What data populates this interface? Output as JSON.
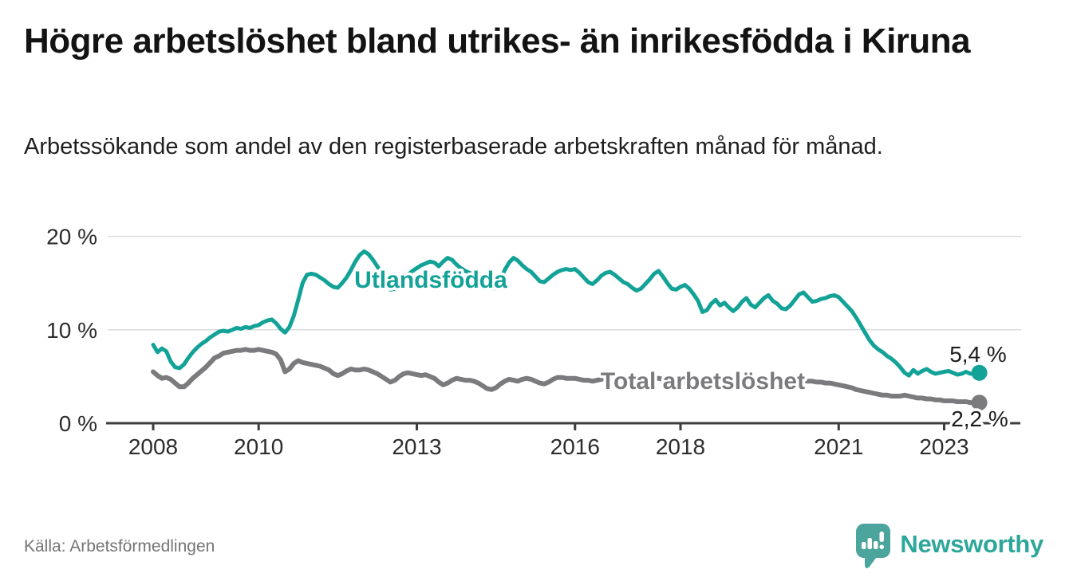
{
  "header": {
    "title": "Högre arbetslöshet bland utrikes- än inrikesfödda i Kiruna",
    "subtitle": "Arbetssökande som andel av den registerbaserade arbetskraften månad för månad."
  },
  "chart_data": {
    "type": "line",
    "unit": "%",
    "frequency": "monthly",
    "start": "2008-01",
    "end": "2023-09",
    "grid": "horizontal",
    "ylim": [
      0,
      21.5
    ],
    "x_ticks": [
      "2008",
      "2010",
      "2013",
      "2016",
      "2018",
      "2021",
      "2023"
    ],
    "y_ticks": [
      "0 %",
      "10 %",
      "20 %"
    ],
    "series": [
      {
        "name": "Utlandsfödda",
        "color": "#13a297",
        "end_label": "5,4 %",
        "values": [
          8.4,
          7.6,
          8.0,
          7.7,
          6.6,
          6.0,
          5.9,
          6.3,
          7.0,
          7.6,
          8.1,
          8.5,
          8.8,
          9.2,
          9.5,
          9.8,
          9.9,
          9.8,
          10.0,
          10.2,
          10.1,
          10.3,
          10.2,
          10.4,
          10.5,
          10.8,
          11.0,
          11.1,
          10.7,
          10.1,
          9.7,
          10.3,
          11.5,
          13.2,
          15.0,
          15.9,
          16.0,
          15.9,
          15.6,
          15.3,
          14.9,
          14.6,
          14.5,
          15.0,
          15.6,
          16.4,
          17.3,
          18.0,
          18.4,
          18.1,
          17.5,
          16.8,
          16.0,
          15.0,
          14.3,
          14.4,
          14.9,
          15.4,
          15.9,
          16.3,
          16.6,
          16.9,
          17.1,
          17.3,
          17.2,
          16.8,
          17.3,
          17.7,
          17.5,
          17.0,
          16.6,
          16.3,
          16.1,
          15.9,
          15.6,
          15.0,
          14.6,
          14.4,
          14.5,
          15.3,
          16.4,
          17.2,
          17.7,
          17.4,
          16.9,
          16.5,
          16.2,
          15.7,
          15.2,
          15.1,
          15.5,
          15.9,
          16.2,
          16.4,
          16.5,
          16.4,
          16.5,
          16.1,
          15.6,
          15.1,
          14.9,
          15.3,
          15.8,
          16.1,
          16.2,
          15.9,
          15.5,
          15.1,
          14.9,
          14.5,
          14.2,
          14.4,
          14.9,
          15.4,
          16.0,
          16.3,
          15.7,
          15.0,
          14.4,
          14.3,
          14.6,
          14.8,
          14.4,
          13.8,
          13.1,
          11.9,
          12.1,
          12.8,
          13.2,
          12.6,
          12.9,
          12.4,
          12.0,
          12.4,
          13.0,
          13.4,
          12.7,
          12.4,
          12.9,
          13.4,
          13.7,
          13.1,
          12.8,
          12.3,
          12.2,
          12.6,
          13.2,
          13.8,
          14.0,
          13.5,
          13.0,
          13.1,
          13.3,
          13.4,
          13.6,
          13.7,
          13.5,
          13.0,
          12.5,
          12.0,
          11.3,
          10.5,
          9.7,
          8.9,
          8.3,
          7.9,
          7.6,
          7.2,
          6.9,
          6.5,
          6.0,
          5.4,
          5.1,
          5.7,
          5.3,
          5.6,
          5.8,
          5.5,
          5.3,
          5.4,
          5.5,
          5.6,
          5.4,
          5.2,
          5.3,
          5.5,
          5.3,
          5.3,
          5.4
        ]
      },
      {
        "name": "Total arbetslöshet",
        "color": "#7b7b7e",
        "end_label": "2,2 %",
        "values": [
          5.5,
          5.1,
          4.8,
          4.9,
          4.7,
          4.3,
          3.9,
          3.9,
          4.3,
          4.8,
          5.2,
          5.6,
          6.0,
          6.5,
          7.0,
          7.2,
          7.5,
          7.6,
          7.7,
          7.8,
          7.8,
          7.9,
          7.8,
          7.8,
          7.9,
          7.8,
          7.7,
          7.6,
          7.4,
          6.8,
          5.5,
          5.8,
          6.4,
          6.7,
          6.5,
          6.4,
          6.3,
          6.2,
          6.1,
          5.9,
          5.7,
          5.3,
          5.1,
          5.3,
          5.6,
          5.8,
          5.7,
          5.7,
          5.8,
          5.7,
          5.5,
          5.3,
          5.0,
          4.7,
          4.4,
          4.6,
          5.0,
          5.3,
          5.4,
          5.3,
          5.2,
          5.1,
          5.2,
          5.0,
          4.8,
          4.4,
          4.1,
          4.3,
          4.6,
          4.8,
          4.7,
          4.6,
          4.6,
          4.5,
          4.3,
          4.0,
          3.7,
          3.6,
          3.8,
          4.2,
          4.5,
          4.7,
          4.6,
          4.5,
          4.7,
          4.8,
          4.7,
          4.5,
          4.3,
          4.2,
          4.4,
          4.7,
          4.9,
          4.9,
          4.8,
          4.8,
          4.8,
          4.7,
          4.6,
          4.6,
          4.5,
          4.6,
          4.7,
          4.8,
          4.8,
          4.7,
          4.6,
          4.6,
          4.6,
          4.5,
          4.4,
          4.5,
          4.6,
          4.7,
          4.8,
          4.8,
          4.7,
          4.6,
          4.5,
          4.5,
          4.5,
          4.5,
          4.4,
          4.3,
          4.2,
          4.1,
          4.1,
          4.2,
          4.3,
          4.3,
          4.2,
          4.2,
          4.2,
          4.3,
          4.3,
          4.2,
          4.1,
          4.1,
          4.2,
          4.3,
          4.4,
          4.4,
          4.3,
          4.3,
          4.3,
          4.4,
          4.5,
          4.6,
          4.6,
          4.5,
          4.5,
          4.4,
          4.4,
          4.3,
          4.3,
          4.2,
          4.1,
          4.0,
          3.9,
          3.8,
          3.6,
          3.5,
          3.4,
          3.3,
          3.2,
          3.1,
          3.0,
          3.0,
          2.9,
          2.9,
          2.9,
          3.0,
          2.9,
          2.8,
          2.7,
          2.7,
          2.6,
          2.6,
          2.5,
          2.5,
          2.4,
          2.4,
          2.4,
          2.3,
          2.3,
          2.3,
          2.2,
          2.2,
          2.2
        ]
      }
    ]
  },
  "footer": {
    "source": "Källa: Arbetsförmedlingen",
    "logo": {
      "text": "Newsworthy",
      "icon_color": "#4ca59d",
      "text_color": "#2ea79b"
    }
  }
}
